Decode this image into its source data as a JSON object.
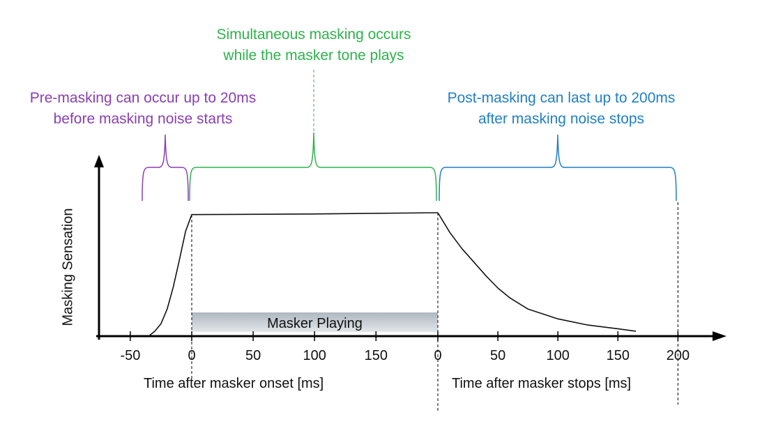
{
  "annotations": {
    "pre": {
      "line1": "Pre-masking can occur up to 20ms",
      "line2": "before masking noise starts",
      "color": "#8a3fb0"
    },
    "simultaneous": {
      "line1": "Simultaneous masking occurs",
      "line2": "while the masker tone plays",
      "color": "#2cb34a"
    },
    "post": {
      "line1": "Post-masking can last up to 200ms",
      "line2": "after masking noise stops",
      "color": "#1f7fc4"
    }
  },
  "axes": {
    "ylabel": "Masking Sensation",
    "xlabel_onset": "Time after masker onset [ms]",
    "xlabel_stop": "Time after masker stops [ms]"
  },
  "masker_bar": {
    "label": "Masker Playing",
    "color": "#c5ccd3"
  },
  "chart_data": {
    "type": "line",
    "segments": [
      {
        "name": "onset",
        "xlim": [
          -50,
          150
        ],
        "ticks": [
          -50,
          0,
          50,
          100,
          150
        ],
        "tick_labels": [
          "-50",
          "0",
          "50",
          "100",
          "150"
        ],
        "curve": [
          [
            -35,
            0.0
          ],
          [
            -30,
            0.04
          ],
          [
            -25,
            0.1
          ],
          [
            -20,
            0.22
          ],
          [
            -15,
            0.4
          ],
          [
            -10,
            0.62
          ],
          [
            -5,
            0.85
          ],
          [
            0,
            0.985
          ],
          [
            100,
            0.99
          ],
          [
            200,
            1.0
          ]
        ]
      },
      {
        "name": "stop",
        "xlim": [
          0,
          200
        ],
        "ticks": [
          0,
          50,
          100,
          150,
          200
        ],
        "tick_labels": [
          "0",
          "50",
          "100",
          "150",
          "200"
        ],
        "curve": [
          [
            0,
            1.0
          ],
          [
            10,
            0.84
          ],
          [
            20,
            0.71
          ],
          [
            30,
            0.6
          ],
          [
            40,
            0.49
          ],
          [
            50,
            0.39
          ],
          [
            60,
            0.31
          ],
          [
            75,
            0.22
          ],
          [
            100,
            0.14
          ],
          [
            125,
            0.09
          ],
          [
            150,
            0.06
          ],
          [
            165,
            0.04
          ]
        ]
      }
    ],
    "ylabel": "Masking Sensation",
    "y_units": "relative (0–1, no scale shown)",
    "regions": [
      {
        "name": "pre-masking",
        "from": -40,
        "to": 0,
        "axis": "onset"
      },
      {
        "name": "simultaneous",
        "from": 0,
        "to": 200,
        "axis": "onset"
      },
      {
        "name": "post-masking",
        "from": 0,
        "to": 200,
        "axis": "stop"
      }
    ]
  }
}
